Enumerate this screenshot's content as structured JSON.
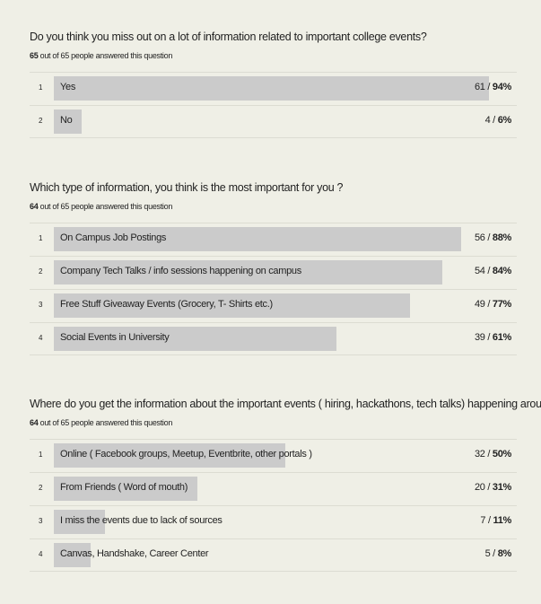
{
  "separator": "/",
  "questions": [
    {
      "title": "Do you think you miss out on a lot of information related to important college events?",
      "answered": 65,
      "answered_text": "out of 65 people answered this question",
      "options": [
        {
          "index": 1,
          "label": "Yes",
          "count": 61,
          "percent": 94,
          "percent_label": "94%"
        },
        {
          "index": 2,
          "label": "No",
          "count": 4,
          "percent": 6,
          "percent_label": "6%"
        }
      ]
    },
    {
      "title": "Which type of information, you think is the most important for you ?",
      "answered": 64,
      "answered_text": "out of 65 people answered this question",
      "options": [
        {
          "index": 1,
          "label": "On Campus Job Postings",
          "count": 56,
          "percent": 88,
          "percent_label": "88%"
        },
        {
          "index": 2,
          "label": "Company Tech Talks / info sessions happening on campus",
          "count": 54,
          "percent": 84,
          "percent_label": "84%"
        },
        {
          "index": 3,
          "label": "Free Stuff Giveaway Events (Grocery, T- Shirts etc.)",
          "count": 49,
          "percent": 77,
          "percent_label": "77%"
        },
        {
          "index": 4,
          "label": "Social Events in University",
          "count": 39,
          "percent": 61,
          "percent_label": "61%"
        }
      ]
    },
    {
      "title": "Where do you get the information about the important events ( hiring, hackathons, tech talks) happening around you ?",
      "answered": 64,
      "answered_text": "out of 65 people answered this question",
      "options": [
        {
          "index": 1,
          "label": "Online ( Facebook groups, Meetup, Eventbrite, other portals )",
          "count": 32,
          "percent": 50,
          "percent_label": "50%"
        },
        {
          "index": 2,
          "label": "From Friends ( Word of mouth)",
          "count": 20,
          "percent": 31,
          "percent_label": "31%"
        },
        {
          "index": 3,
          "label": "I miss the events due to lack of sources",
          "count": 7,
          "percent": 11,
          "percent_label": "11%"
        },
        {
          "index": 4,
          "label": "Canvas, Handshake, Career Center",
          "count": 5,
          "percent": 8,
          "percent_label": "8%"
        }
      ]
    }
  ]
}
